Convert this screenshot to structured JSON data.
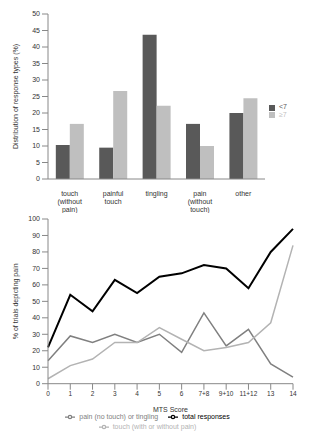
{
  "chart_data": [
    {
      "type": "bar",
      "categories": [
        "touch (without pain)",
        "painful touch",
        "tingling",
        "pain (without touch)",
        "other"
      ],
      "series": [
        {
          "name": "<7",
          "color": "#595959",
          "values": [
            10.3,
            9.5,
            43.7,
            16.7,
            20
          ]
        },
        {
          "name": "≥7",
          "color": "#bfbfbf",
          "values": [
            16.7,
            26.7,
            22.2,
            10,
            24.5
          ]
        }
      ],
      "y_label": "Distribution of response types (%)",
      "ylim": [
        0,
        50
      ],
      "yticks": [
        0,
        5,
        10,
        15,
        20,
        25,
        30,
        35,
        40,
        45,
        50
      ],
      "legend": "right",
      "grid": false
    },
    {
      "type": "line",
      "categories": [
        "0",
        "1",
        "2",
        "3",
        "4",
        "5",
        "6",
        "7+8",
        "9+10",
        "11+12",
        "13",
        "14"
      ],
      "series": [
        {
          "name": "pain (no touch) or tingling",
          "color": "#808080",
          "values": [
            14,
            29,
            25,
            30,
            25,
            30,
            19,
            43,
            23,
            33,
            12,
            4
          ]
        },
        {
          "name": "touch (with or without pain)",
          "color": "#b3b3b3",
          "values": [
            3,
            11,
            15,
            25,
            25,
            34,
            27,
            20,
            22,
            25,
            37,
            84
          ]
        },
        {
          "name": "total responses",
          "color": "#000000",
          "values": [
            22,
            54,
            44,
            63,
            55,
            65,
            67,
            72,
            70,
            58,
            80,
            94
          ]
        }
      ],
      "x_label": "MTS Score",
      "y_label": "% of trials depicting pain",
      "ylim": [
        0,
        100
      ],
      "yticks": [
        0,
        10,
        20,
        30,
        40,
        50,
        60,
        70,
        80,
        90,
        100
      ],
      "legend": "bottom",
      "grid": false,
      "marker": "none"
    }
  ]
}
